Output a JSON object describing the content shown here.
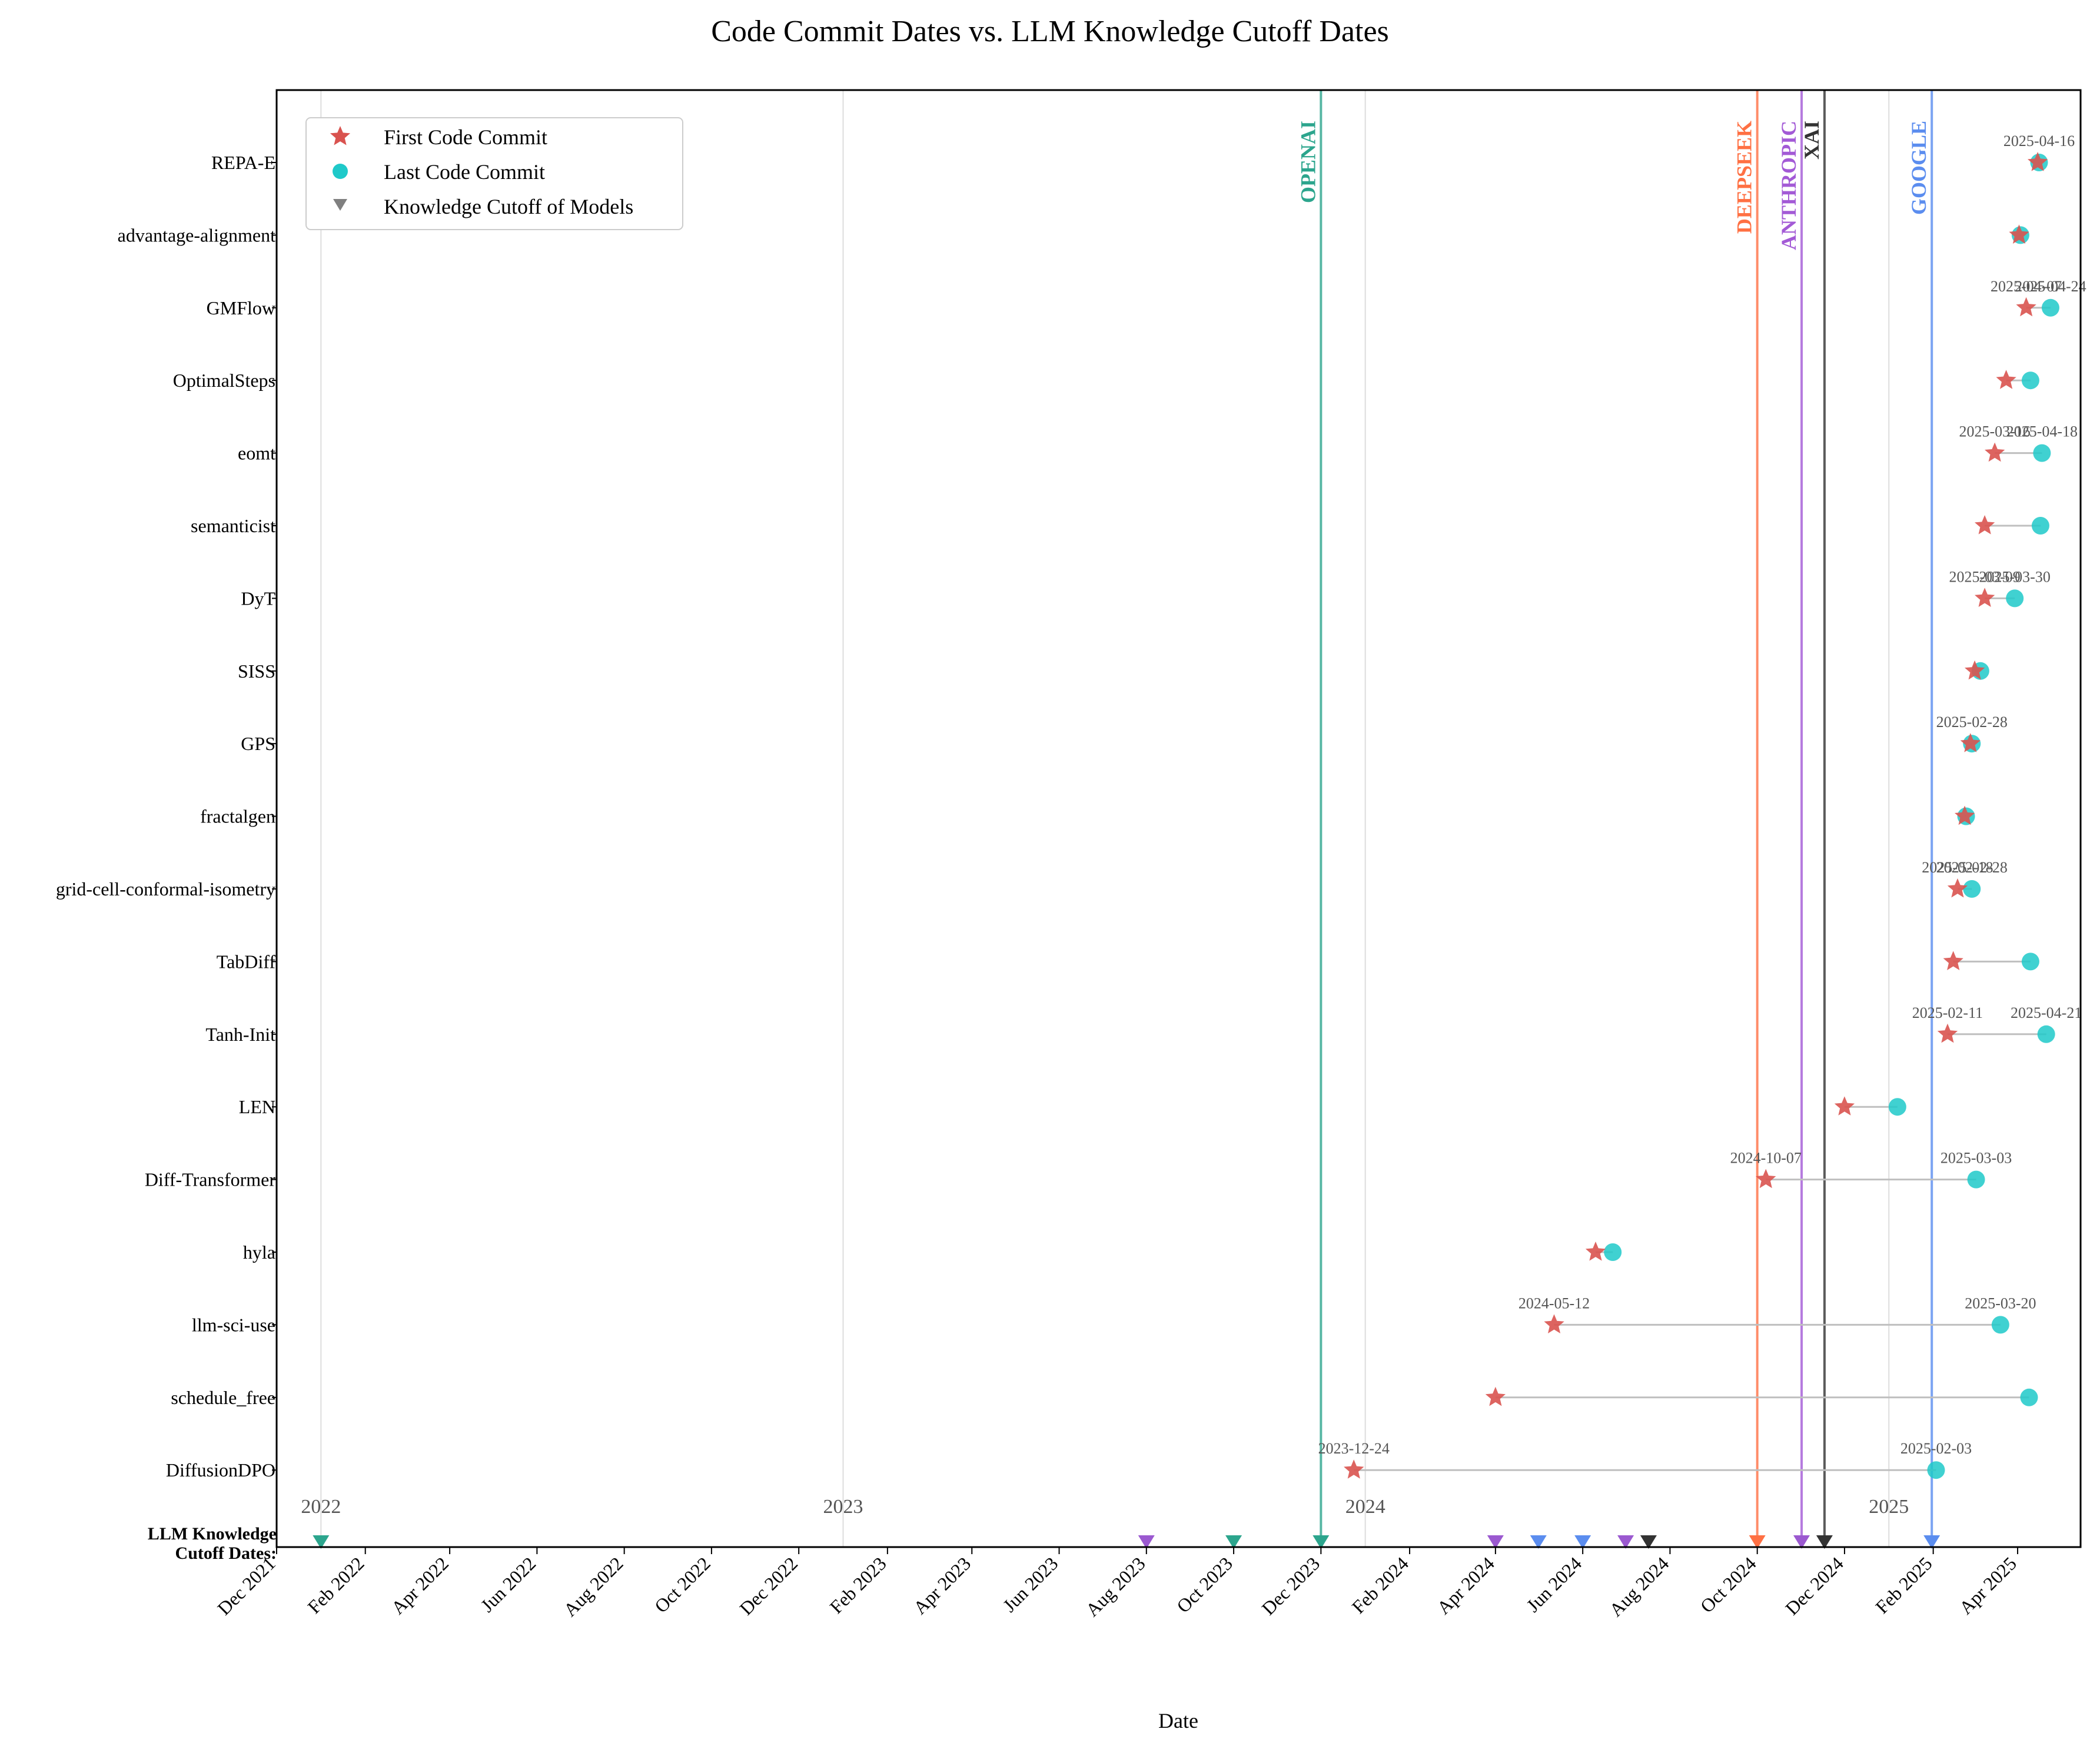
{
  "chart_data": {
    "type": "scatter",
    "title": "Code Commit Dates vs. LLM Knowledge Cutoff Dates",
    "xlabel": "Date",
    "ylabel": "",
    "xlim": [
      "2021-12-01",
      "2025-05-15"
    ],
    "grid": "vertical lines at year boundaries",
    "legend_position": "top-left",
    "legend": {
      "first": "First Code Commit",
      "last": "Last Code Commit",
      "cutoff": "Knowledge Cutoff of Models"
    },
    "cutoff_row_label": [
      "LLM Knowledge",
      "Cutoff Dates:"
    ],
    "x_ticks": [
      {
        "date": "2021-12-01",
        "label": "Dec 2021"
      },
      {
        "date": "2022-02-01",
        "label": "Feb 2022"
      },
      {
        "date": "2022-04-01",
        "label": "Apr 2022"
      },
      {
        "date": "2022-06-01",
        "label": "Jun 2022"
      },
      {
        "date": "2022-08-01",
        "label": "Aug 2022"
      },
      {
        "date": "2022-10-01",
        "label": "Oct 2022"
      },
      {
        "date": "2022-12-01",
        "label": "Dec 2022"
      },
      {
        "date": "2023-02-01",
        "label": "Feb 2023"
      },
      {
        "date": "2023-04-01",
        "label": "Apr 2023"
      },
      {
        "date": "2023-06-01",
        "label": "Jun 2023"
      },
      {
        "date": "2023-08-01",
        "label": "Aug 2023"
      },
      {
        "date": "2023-10-01",
        "label": "Oct 2023"
      },
      {
        "date": "2023-12-01",
        "label": "Dec 2023"
      },
      {
        "date": "2024-02-01",
        "label": "Feb 2024"
      },
      {
        "date": "2024-04-01",
        "label": "Apr 2024"
      },
      {
        "date": "2024-06-01",
        "label": "Jun 2024"
      },
      {
        "date": "2024-08-01",
        "label": "Aug 2024"
      },
      {
        "date": "2024-10-01",
        "label": "Oct 2024"
      },
      {
        "date": "2024-12-01",
        "label": "Dec 2024"
      },
      {
        "date": "2025-02-01",
        "label": "Feb 2025"
      },
      {
        "date": "2025-04-01",
        "label": "Apr 2025"
      }
    ],
    "year_markers": [
      {
        "date": "2022-01-01",
        "label": "2022"
      },
      {
        "date": "2023-01-01",
        "label": "2023"
      },
      {
        "date": "2024-01-01",
        "label": "2024"
      },
      {
        "date": "2025-01-01",
        "label": "2025"
      }
    ],
    "vendor_lines": [
      {
        "name": "OPENAI",
        "date": "2023-12-01",
        "color": "#2ca58d"
      },
      {
        "name": "DEEPSEEK",
        "date": "2024-10-01",
        "color": "#ff7043"
      },
      {
        "name": "ANTHROPIC",
        "date": "2024-11-01",
        "color": "#a35ad6"
      },
      {
        "name": "XAI",
        "date": "2024-11-17",
        "color": "#333333"
      },
      {
        "name": "GOOGLE",
        "date": "2025-01-31",
        "color": "#5b8def"
      }
    ],
    "cutoffs": [
      {
        "date": "2022-01-01",
        "color": "#2ca58d"
      },
      {
        "date": "2023-08-01",
        "color": "#9b59d0"
      },
      {
        "date": "2023-10-01",
        "color": "#2ca58d"
      },
      {
        "date": "2023-12-01",
        "color": "#2ca58d"
      },
      {
        "date": "2024-04-01",
        "color": "#9b59d0"
      },
      {
        "date": "2024-05-01",
        "color": "#5b8def"
      },
      {
        "date": "2024-06-01",
        "color": "#5b8def"
      },
      {
        "date": "2024-07-01",
        "color": "#9b59d0"
      },
      {
        "date": "2024-07-17",
        "color": "#333333"
      },
      {
        "date": "2024-10-01",
        "color": "#ff7043"
      },
      {
        "date": "2024-11-01",
        "color": "#9b59d0"
      },
      {
        "date": "2024-11-17",
        "color": "#333333"
      },
      {
        "date": "2025-01-31",
        "color": "#5b8def"
      }
    ],
    "projects": [
      {
        "name": "REPA-E",
        "first": "2025-04-15",
        "last": "2025-04-16",
        "ann_first": "",
        "ann_last": "2025-04-16"
      },
      {
        "name": "advantage-alignment",
        "first": "2025-04-02",
        "last": "2025-04-03",
        "ann_first": "",
        "ann_last": ""
      },
      {
        "name": "GMFlow",
        "first": "2025-04-07",
        "last": "2025-04-24",
        "ann_first": "2025-04-07",
        "ann_last": "2025-04-24"
      },
      {
        "name": "OptimalSteps",
        "first": "2025-03-24",
        "last": "2025-04-10",
        "ann_first": "",
        "ann_last": ""
      },
      {
        "name": "eomt",
        "first": "2025-03-16",
        "last": "2025-04-18",
        "ann_first": "2025-03-16",
        "ann_last": "2025-04-18"
      },
      {
        "name": "semanticist",
        "first": "2025-03-09",
        "last": "2025-04-17",
        "ann_first": "",
        "ann_last": ""
      },
      {
        "name": "DyT",
        "first": "2025-03-09",
        "last": "2025-03-30",
        "ann_first": "2025-03-09",
        "ann_last": "2025-03-30"
      },
      {
        "name": "SISS",
        "first": "2025-03-02",
        "last": "2025-03-06",
        "ann_first": "",
        "ann_last": ""
      },
      {
        "name": "GPS",
        "first": "2025-02-27",
        "last": "2025-02-28",
        "ann_first": "",
        "ann_last": "2025-02-28"
      },
      {
        "name": "fractalgen",
        "first": "2025-02-23",
        "last": "2025-02-24",
        "ann_first": "",
        "ann_last": ""
      },
      {
        "name": "grid-cell-conformal-isometry",
        "first": "2025-02-18",
        "last": "2025-02-28",
        "ann_first": "2025-02-18",
        "ann_last": "2025-02-28"
      },
      {
        "name": "TabDiff",
        "first": "2025-02-15",
        "last": "2025-04-10",
        "ann_first": "",
        "ann_last": ""
      },
      {
        "name": "Tanh-Init",
        "first": "2025-02-11",
        "last": "2025-04-21",
        "ann_first": "2025-02-11",
        "ann_last": "2025-04-21"
      },
      {
        "name": "LEN",
        "first": "2024-12-01",
        "last": "2025-01-07",
        "ann_first": "",
        "ann_last": ""
      },
      {
        "name": "Diff-Transformer",
        "first": "2024-10-07",
        "last": "2025-03-03",
        "ann_first": "2024-10-07",
        "ann_last": "2025-03-03"
      },
      {
        "name": "hyla",
        "first": "2024-06-10",
        "last": "2024-06-22",
        "ann_first": "",
        "ann_last": ""
      },
      {
        "name": "llm-sci-use",
        "first": "2024-05-12",
        "last": "2025-03-20",
        "ann_first": "2024-05-12",
        "ann_last": "2025-03-20"
      },
      {
        "name": "schedule_free",
        "first": "2024-04-01",
        "last": "2025-04-09",
        "ann_first": "",
        "ann_last": ""
      },
      {
        "name": "DiffusionDPO",
        "first": "2023-12-24",
        "last": "2025-02-03",
        "ann_first": "2023-12-24",
        "ann_last": "2025-02-03"
      }
    ],
    "colors": {
      "first": "#d9534f",
      "last": "#1fc9c9",
      "connector": "#bfbfbf",
      "grid": "#dddddd",
      "cutoff_legend": "#808080"
    }
  }
}
